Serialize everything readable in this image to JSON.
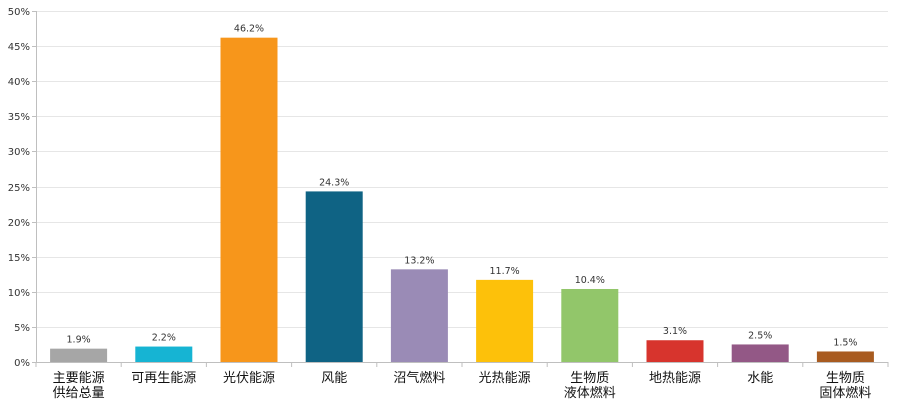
{
  "chart_data": {
    "type": "bar",
    "title": "",
    "xlabel": "",
    "ylabel": "",
    "categories": [
      [
        "主要能源",
        "供给总量"
      ],
      [
        "可再生能源"
      ],
      [
        "光伏能源"
      ],
      [
        "风能"
      ],
      [
        "沼气燃料"
      ],
      [
        "光热能源"
      ],
      [
        "生物质",
        "液体燃料"
      ],
      [
        "地热能源"
      ],
      [
        "水能"
      ],
      [
        "生物质",
        "固体燃料"
      ]
    ],
    "values": [
      1.9,
      2.2,
      46.2,
      24.3,
      13.2,
      11.7,
      10.4,
      3.1,
      2.5,
      1.5
    ],
    "value_labels": [
      "1.9%",
      "2.2%",
      "46.2%",
      "24.3%",
      "13.2%",
      "11.7%",
      "10.4%",
      "3.1%",
      "2.5%",
      "1.5%"
    ],
    "colors": [
      "#a6a6a6",
      "#16b4d3",
      "#f7961b",
      "#0f6384",
      "#9a8bb6",
      "#fdc10a",
      "#92c66a",
      "#d7342d",
      "#935886",
      "#a85b20"
    ],
    "ylim": [
      0,
      50
    ],
    "yticks": [
      0,
      5,
      10,
      15,
      20,
      25,
      30,
      35,
      40,
      45,
      50
    ],
    "ytick_labels": [
      "0%",
      "5%",
      "10%",
      "15%",
      "20%",
      "25%",
      "30%",
      "35%",
      "40%",
      "45%",
      "50%"
    ],
    "grid": true,
    "legend": "none"
  }
}
